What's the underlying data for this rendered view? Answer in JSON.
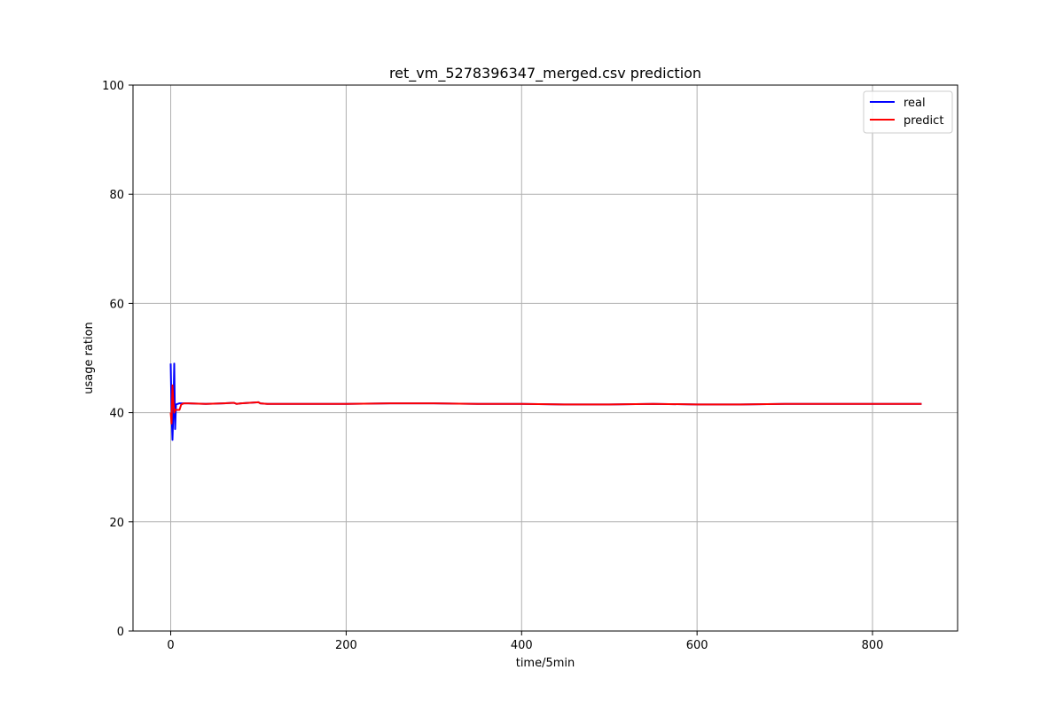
{
  "chart_data": {
    "type": "line",
    "title": "ret_vm_5278396347_merged.csv prediction",
    "xlabel": "time/5min",
    "ylabel": "usage ration",
    "xlim": [
      -43,
      897
    ],
    "ylim": [
      0,
      100
    ],
    "xticks": [
      0,
      200,
      400,
      600,
      800
    ],
    "yticks": [
      0,
      20,
      40,
      60,
      80,
      100
    ],
    "grid": true,
    "legend_position": "top-right",
    "series": [
      {
        "name": "real",
        "color": "#0000ff",
        "x": [
          0,
          1,
          2,
          3,
          4,
          5,
          6,
          8,
          10,
          15,
          20,
          40,
          60,
          72,
          75,
          80,
          100,
          102,
          110,
          150,
          200,
          250,
          300,
          350,
          400,
          450,
          500,
          550,
          600,
          650,
          700,
          750,
          800,
          856
        ],
        "y": [
          49.0,
          40.0,
          35.0,
          40.0,
          49.0,
          37.0,
          41.5,
          41.6,
          41.7,
          41.7,
          41.7,
          41.6,
          41.7,
          41.8,
          41.6,
          41.7,
          41.9,
          41.7,
          41.6,
          41.6,
          41.6,
          41.7,
          41.7,
          41.6,
          41.6,
          41.5,
          41.5,
          41.6,
          41.5,
          41.5,
          41.6,
          41.6,
          41.6,
          41.6
        ]
      },
      {
        "name": "predict",
        "color": "#ff0000",
        "x": [
          0,
          1,
          2,
          3,
          4,
          5,
          6,
          8,
          10,
          12,
          15,
          20,
          40,
          60,
          72,
          75,
          80,
          100,
          102,
          110,
          150,
          200,
          250,
          300,
          350,
          400,
          450,
          500,
          550,
          600,
          650,
          700,
          750,
          800,
          856
        ],
        "y": [
          40.0,
          38.0,
          45.0,
          42.0,
          40.0,
          40.5,
          40.5,
          40.5,
          40.5,
          41.5,
          41.7,
          41.7,
          41.6,
          41.7,
          41.8,
          41.6,
          41.7,
          41.9,
          41.7,
          41.6,
          41.6,
          41.6,
          41.7,
          41.7,
          41.6,
          41.6,
          41.5,
          41.5,
          41.6,
          41.5,
          41.5,
          41.6,
          41.6,
          41.6,
          41.6
        ]
      }
    ]
  }
}
